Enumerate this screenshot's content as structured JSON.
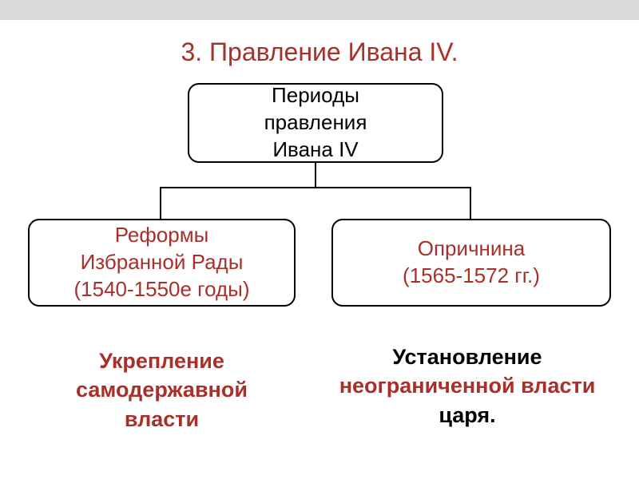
{
  "title": {
    "text": "3. Правление Ивана IV.",
    "color": "#a92f2b"
  },
  "root_box": {
    "line1": "Периоды",
    "line2": "правления",
    "line3": "Ивана IV",
    "text_color": "#000000",
    "border_color": "#000000",
    "bg_color": "#ffffff"
  },
  "left_box": {
    "line1": "Реформы",
    "line2": "Избранной Рады",
    "line3": "(1540-1550е годы)",
    "text_color": "#a92f2b",
    "border_color": "#000000",
    "bg_color": "#ffffff"
  },
  "right_box": {
    "line1": "Опричнина",
    "line2": "(1565-1572 гг.)",
    "text_color": "#a92f2b",
    "border_color": "#000000",
    "bg_color": "#ffffff"
  },
  "outcome_left": {
    "line1": "Укрепление",
    "line2": "самодержавной",
    "line3": "власти",
    "text_color": "#a92f2b"
  },
  "outcome_right": {
    "word1": "Установление",
    "word2": "неограниченной власти",
    "word3": "царя.",
    "color_black": "#000000",
    "color_red": "#a92f2b"
  },
  "style": {
    "bg_color": "#ffffff",
    "topbar_color": "#d9d9d9",
    "connector_color": "#000000",
    "box_border_radius": 14,
    "title_fontsize": 32,
    "box_fontsize": 26,
    "outcome_fontsize": 27
  }
}
